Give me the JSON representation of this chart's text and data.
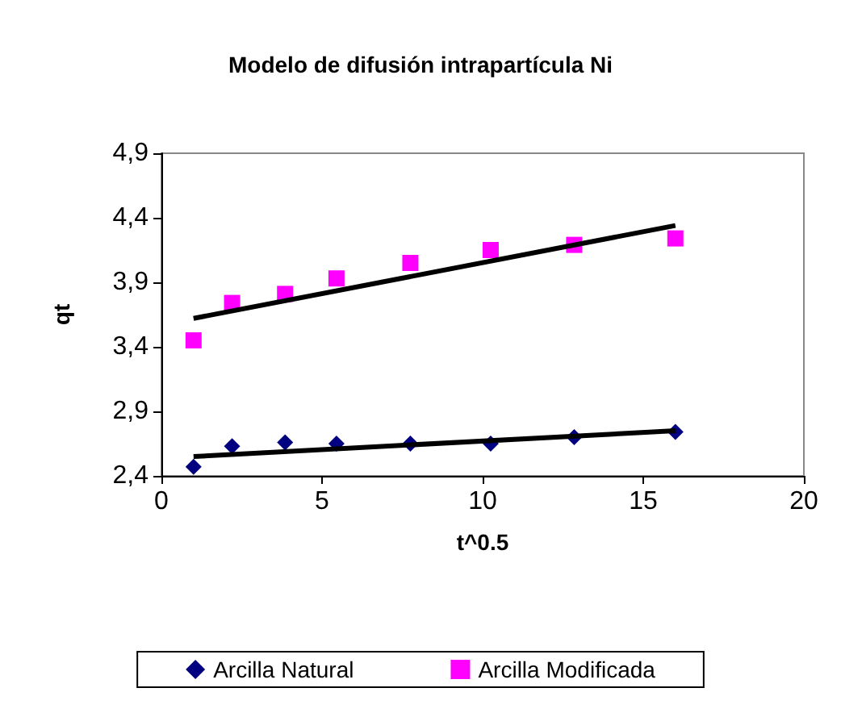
{
  "chart_data": {
    "type": "scatter",
    "title": "Modelo de difusión intrapartícula Ni",
    "xlabel": "t^0.5",
    "ylabel": "qt",
    "x": [
      1,
      2.2,
      3.85,
      5.45,
      7.75,
      10.25,
      12.85,
      16
    ],
    "series": [
      {
        "name": "Arcilla Natural",
        "color": "#000080",
        "marker": "diamond",
        "values": [
          2.47,
          2.63,
          2.66,
          2.65,
          2.65,
          2.65,
          2.7,
          2.74
        ]
      },
      {
        "name": "Arcilla Modificada",
        "color": "#ff00ff",
        "marker": "square",
        "values": [
          3.45,
          3.74,
          3.81,
          3.93,
          4.05,
          4.15,
          4.19,
          4.24
        ]
      },
      {
        "type": "line",
        "color": "#000000",
        "values": [
          2.55,
          null,
          null,
          null,
          null,
          null,
          null,
          2.75
        ]
      },
      {
        "type": "line",
        "color": "#000000",
        "values": [
          3.62,
          null,
          null,
          null,
          null,
          null,
          null,
          4.34
        ]
      }
    ],
    "xlim": [
      0,
      20
    ],
    "xticks": [
      0,
      5,
      10,
      15,
      20
    ],
    "ylim": [
      2.4,
      4.9
    ],
    "yticks": [
      {
        "value": 2.4,
        "label": "2,4"
      },
      {
        "value": 2.9,
        "label": "2,9"
      },
      {
        "value": 3.4,
        "label": "3,4"
      },
      {
        "value": 3.9,
        "label": "3,9"
      },
      {
        "value": 4.4,
        "label": "4,4"
      },
      {
        "value": 4.9,
        "label": "4,9"
      }
    ],
    "grid": false,
    "legend": "bottom"
  }
}
